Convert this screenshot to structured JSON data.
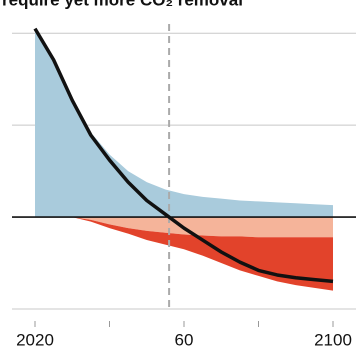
{
  "chart_data": {
    "type": "area",
    "title": "require yet more CO₂ removal",
    "x": [
      2020,
      2025,
      2030,
      2035,
      2040,
      2045,
      2050,
      2055,
      2060,
      2065,
      2070,
      2075,
      2080,
      2085,
      2090,
      2095,
      2100
    ],
    "xlim": [
      2020,
      2100
    ],
    "xticks": [
      2020,
      {
        "value": 2060,
        "label": "60"
      },
      2100
    ],
    "xminorticks": [
      2040,
      2080
    ],
    "ylim": [
      -1,
      2.1
    ],
    "gridlines": [
      -1,
      1,
      2
    ],
    "vline": 2056,
    "areas": [
      {
        "color": "#a9cbdc",
        "values": [
          2.05,
          1.72,
          1.28,
          0.92,
          0.68,
          0.5,
          0.38,
          0.3,
          0.25,
          0.22,
          0.2,
          0.18,
          0.17,
          0.16,
          0.15,
          0.14,
          0.13
        ]
      },
      {
        "color": "#f5b49a",
        "values": [
          0,
          0,
          0,
          -0.03,
          -0.08,
          -0.12,
          -0.15,
          -0.17,
          -0.19,
          -0.2,
          -0.21,
          -0.21,
          -0.22,
          -0.22,
          -0.22,
          -0.22,
          -0.22
        ]
      },
      {
        "color": "#e2432b",
        "values": [
          0,
          0,
          0,
          -0.02,
          -0.04,
          -0.06,
          -0.1,
          -0.13,
          -0.16,
          -0.22,
          -0.29,
          -0.37,
          -0.42,
          -0.48,
          -0.52,
          -0.55,
          -0.58
        ]
      }
    ],
    "line": {
      "color": "#111111",
      "values": [
        2.05,
        1.71,
        1.27,
        0.89,
        0.62,
        0.38,
        0.18,
        0.03,
        -0.12,
        -0.25,
        -0.38,
        -0.49,
        -0.58,
        -0.63,
        -0.66,
        -0.68,
        -0.7
      ]
    }
  }
}
